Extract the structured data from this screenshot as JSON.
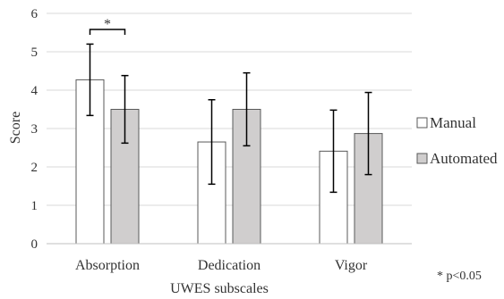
{
  "chart_data": {
    "type": "bar",
    "title": "",
    "xlabel": "UWES subscales",
    "ylabel": "Score",
    "ylim": [
      0,
      6
    ],
    "yticks": [
      0,
      1,
      2,
      3,
      4,
      5,
      6
    ],
    "grid": true,
    "legend_position": "right",
    "categories": [
      "Absorption",
      "Dedication",
      "Vigor"
    ],
    "series": [
      {
        "name": "Manual",
        "color": "#ffffff",
        "values": [
          4.27,
          2.65,
          2.41
        ],
        "error": [
          0.93,
          1.1,
          1.07
        ]
      },
      {
        "name": "Automated",
        "color": "#d0cece",
        "values": [
          3.5,
          3.5,
          2.87
        ],
        "error": [
          0.88,
          0.95,
          1.07
        ]
      }
    ],
    "significance": [
      {
        "category": "Absorption",
        "label": "*"
      }
    ],
    "note": "* p<0.05"
  }
}
